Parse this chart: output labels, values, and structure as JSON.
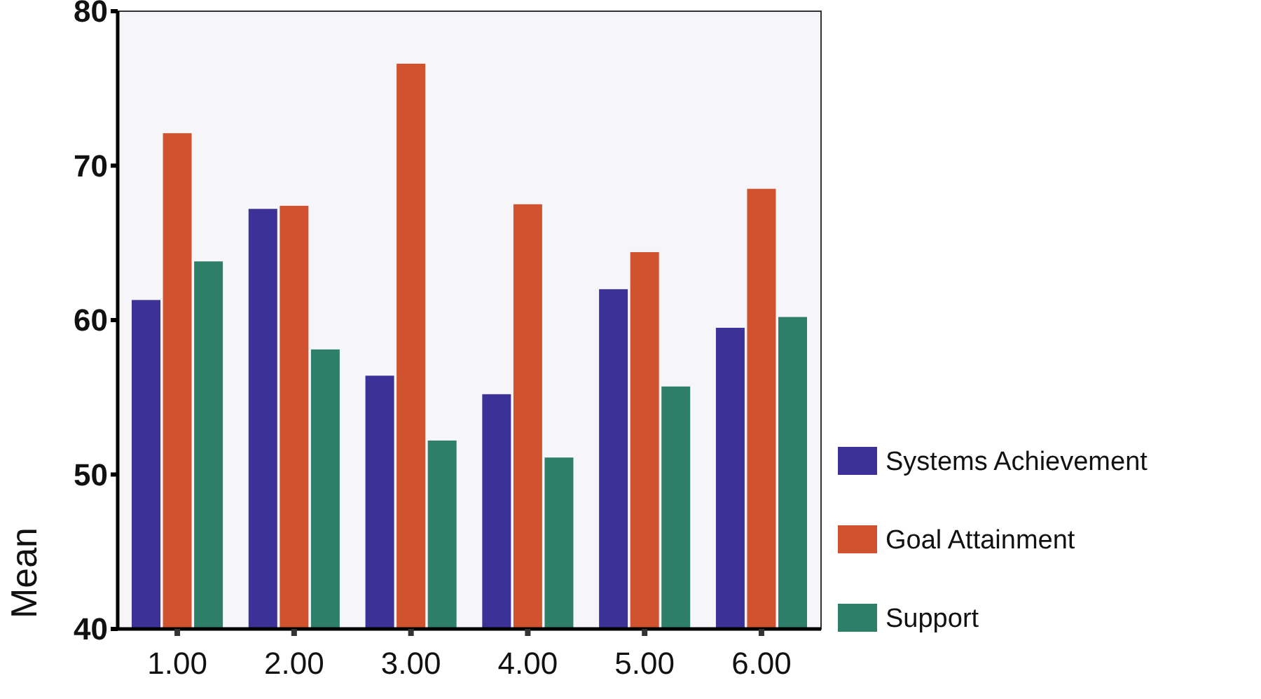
{
  "chart_data": {
    "type": "bar",
    "ylabel": "Mean",
    "categories": [
      "1.00",
      "2.00",
      "3.00",
      "4.00",
      "5.00",
      "6.00"
    ],
    "series": [
      {
        "name": "Systems Achievement",
        "color": "#3b3196",
        "values": [
          61.3,
          67.2,
          56.4,
          55.2,
          62.0,
          59.5
        ]
      },
      {
        "name": "Goal Attainment",
        "color": "#d1522e",
        "values": [
          72.1,
          67.4,
          76.6,
          67.5,
          64.4,
          68.5
        ]
      },
      {
        "name": "Support",
        "color": "#2e7f6a",
        "values": [
          63.8,
          58.1,
          52.2,
          51.1,
          55.7,
          60.2
        ]
      }
    ],
    "ylim": [
      40,
      80
    ],
    "yticks": [
      40,
      50,
      60,
      70,
      80
    ],
    "grid": false,
    "legend": "right"
  }
}
